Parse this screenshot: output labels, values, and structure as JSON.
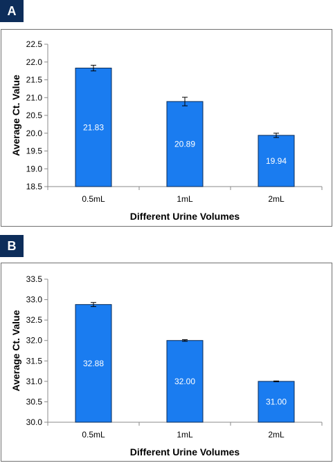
{
  "panels": [
    {
      "label": "A"
    },
    {
      "label": "B"
    }
  ],
  "colors": {
    "bar_fill": "#1a7cf0",
    "bar_stroke": "#0a2a55",
    "panel_label_bg": "#0d2d5a"
  },
  "chart_data": [
    {
      "type": "bar",
      "categories": [
        "0.5mL",
        "1mL",
        "2mL"
      ],
      "values": [
        21.83,
        20.89,
        19.94
      ],
      "value_labels": [
        "21.83",
        "20.89",
        "19.94"
      ],
      "errors": [
        0.08,
        0.12,
        0.06
      ],
      "xlabel": "Different Urine Volumes",
      "ylabel": "Average Ct. Value",
      "ylim": [
        18.5,
        22.5
      ],
      "yticks": [
        "18.5",
        "19.0",
        "19.5",
        "20.0",
        "20.5",
        "21.0",
        "21.5",
        "22.0",
        "22.5"
      ],
      "grid": false
    },
    {
      "type": "bar",
      "categories": [
        "0.5mL",
        "1mL",
        "2mL"
      ],
      "values": [
        32.88,
        32.0,
        31.0
      ],
      "value_labels": [
        "32.88",
        "32.00",
        "31.00"
      ],
      "errors": [
        0.05,
        0.02,
        0.01
      ],
      "xlabel": "Different Urine Volumes",
      "ylabel": "Average Ct. Value",
      "ylim": [
        30.0,
        33.5
      ],
      "yticks": [
        "30.0",
        "30.5",
        "31.0",
        "31.5",
        "32.0",
        "32.5",
        "33.0",
        "33.5"
      ],
      "grid": false
    }
  ]
}
